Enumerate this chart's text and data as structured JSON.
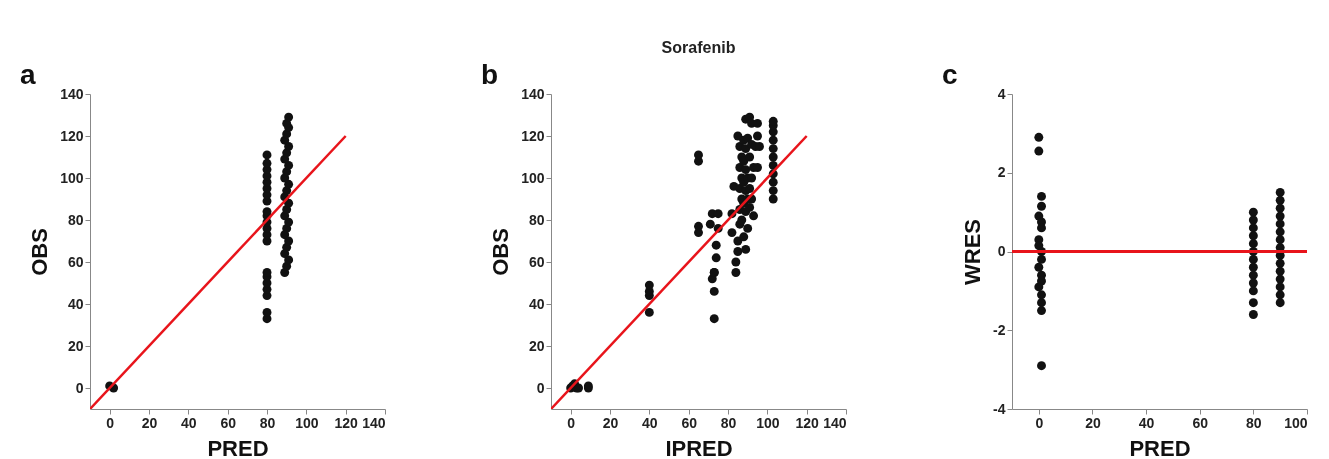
{
  "chart_data": [
    {
      "type": "scatter",
      "annotations": [
        "a"
      ],
      "xlabel": "PRED",
      "ylabel": "OBS",
      "xlim": [
        -10,
        140
      ],
      "ylim": [
        -10,
        140
      ],
      "xticks": [
        0,
        20,
        40,
        60,
        80,
        100,
        120,
        140
      ],
      "yticks": [
        0,
        20,
        40,
        60,
        80,
        100,
        120,
        140
      ],
      "grid": false,
      "series": [
        {
          "type": "scatter",
          "marker": "circle",
          "color": "#111111",
          "x": [
            0,
            2,
            80,
            80,
            80,
            80,
            80,
            80,
            80,
            80,
            80,
            80,
            80,
            80,
            80,
            80,
            80,
            80,
            80,
            80,
            80,
            80,
            80,
            89,
            90,
            91,
            89,
            90,
            91,
            89,
            90,
            91,
            89,
            90,
            91,
            89,
            90,
            91,
            89,
            90,
            91,
            89,
            90,
            91,
            89,
            90,
            91,
            90,
            91
          ],
          "values": [
            1,
            0,
            33,
            36,
            44,
            47,
            50,
            53,
            55,
            70,
            73,
            76,
            79,
            82,
            84,
            89,
            92,
            95,
            98,
            101,
            104,
            107,
            111,
            55,
            58,
            61,
            64,
            67,
            70,
            73,
            76,
            79,
            82,
            85,
            88,
            91,
            94,
            97,
            100,
            103,
            106,
            109,
            112,
            115,
            118,
            121,
            124,
            126,
            129
          ]
        },
        {
          "type": "line",
          "color": "#e8141b",
          "x": [
            -10,
            120
          ],
          "values": [
            -10,
            120
          ]
        }
      ]
    },
    {
      "type": "scatter",
      "annotations": [
        "b"
      ],
      "title": "Sorafenib",
      "xlabel": "IPRED",
      "ylabel": "OBS",
      "xlim": [
        -10,
        140
      ],
      "ylim": [
        -10,
        140
      ],
      "xticks": [
        0,
        20,
        40,
        60,
        80,
        100,
        120,
        140
      ],
      "yticks": [
        0,
        20,
        40,
        60,
        80,
        100,
        120,
        140
      ],
      "grid": false,
      "series": [
        {
          "type": "scatter",
          "marker": "circle",
          "color": "#111111",
          "x": [
            0,
            1,
            2,
            3,
            4,
            9,
            9,
            40,
            40,
            40,
            40,
            65,
            65,
            65,
            65,
            71,
            72,
            72,
            73,
            73,
            73,
            73,
            74,
            74,
            75,
            75,
            82,
            82,
            83,
            84,
            84,
            85,
            85,
            85,
            86,
            86,
            86,
            86,
            86,
            87,
            87,
            87,
            87,
            88,
            88,
            88,
            88,
            88,
            89,
            89,
            89,
            89,
            89,
            89,
            90,
            90,
            90,
            90,
            91,
            91,
            91,
            91,
            92,
            92,
            92,
            92,
            93,
            93,
            94,
            95,
            95,
            95,
            96,
            103,
            103,
            103,
            103,
            103,
            103,
            103,
            103,
            103,
            103,
            103
          ],
          "values": [
            0,
            1,
            2,
            0,
            0,
            0,
            1,
            36,
            44,
            46,
            49,
            74,
            77,
            108,
            111,
            78,
            83,
            52,
            55,
            46,
            33,
            55,
            62,
            68,
            83,
            76,
            83,
            74,
            96,
            60,
            55,
            65,
            70,
            120,
            115,
            105,
            95,
            85,
            78,
            110,
            100,
            90,
            80,
            118,
            108,
            98,
            88,
            72,
            128,
            114,
            104,
            94,
            84,
            66,
            119,
            100,
            90,
            76,
            129,
            110,
            95,
            86,
            126,
            116,
            100,
            90,
            82,
            105,
            115,
            126,
            120,
            105,
            115,
            90,
            94,
            98,
            102,
            106,
            110,
            114,
            118,
            122,
            125,
            127
          ]
        },
        {
          "type": "line",
          "color": "#e8141b",
          "x": [
            -10,
            120
          ],
          "values": [
            -10,
            120
          ]
        }
      ]
    },
    {
      "type": "scatter",
      "annotations": [
        "c"
      ],
      "xlabel": "PRED",
      "ylabel": "WRES",
      "xlim": [
        -10,
        100
      ],
      "ylim": [
        -4,
        4
      ],
      "xticks": [
        0,
        20,
        40,
        60,
        80,
        100
      ],
      "yticks": [
        -4,
        -2,
        0,
        2,
        4
      ],
      "grid": false,
      "ref_lines": [
        {
          "axis": "y",
          "value": 0,
          "color": "#e8141b"
        }
      ],
      "series": [
        {
          "type": "scatter",
          "marker": "circle",
          "color": "#111111",
          "x": [
            0,
            0,
            1,
            1,
            0,
            1,
            1,
            0,
            0,
            1,
            1,
            0,
            1,
            1,
            0,
            1,
            1,
            1,
            1,
            80,
            80,
            80,
            80,
            80,
            80,
            80,
            80,
            80,
            80,
            80,
            80,
            80,
            90,
            90,
            90,
            90,
            90,
            90,
            90,
            90,
            90,
            90,
            90,
            90,
            90,
            90,
            90
          ],
          "values": [
            2.9,
            2.55,
            1.4,
            1.15,
            0.9,
            0.75,
            0.6,
            0.3,
            0.15,
            0,
            -0.2,
            -0.4,
            -0.6,
            -0.75,
            -0.9,
            -1.1,
            -1.3,
            -1.5,
            -2.9,
            1.0,
            0.8,
            0.6,
            0.4,
            0.2,
            0,
            -0.2,
            -0.4,
            -0.6,
            -0.8,
            -1.0,
            -1.3,
            -1.6,
            1.5,
            1.3,
            1.1,
            0.9,
            0.7,
            0.5,
            0.3,
            0.1,
            -0.1,
            -0.3,
            -0.5,
            -0.7,
            -0.9,
            -1.1,
            -1.3
          ]
        }
      ]
    }
  ]
}
